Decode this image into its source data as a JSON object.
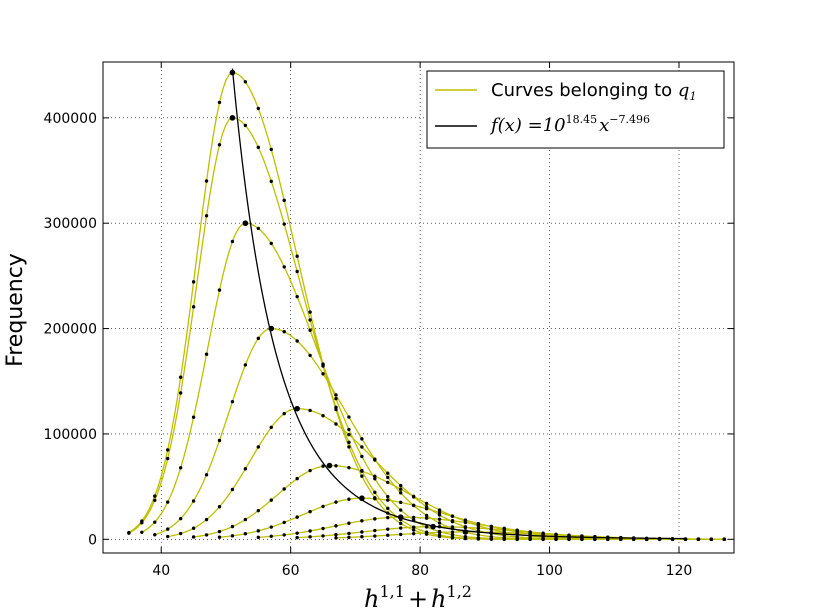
{
  "chart_data": {
    "type": "line",
    "xlabel": {
      "base1": "h",
      "sup1": "1,1",
      "plus": "+",
      "base2": "h",
      "sup2": "1,2"
    },
    "ylabel": "Frequency",
    "xlim": [
      31,
      128.5
    ],
    "ylim": [
      -13000,
      453000
    ],
    "xticks": [
      40,
      60,
      80,
      100,
      120
    ],
    "yticks": [
      0,
      100000,
      200000,
      300000,
      400000
    ],
    "ytick_labels": [
      "0",
      "100000",
      "200000",
      "300000",
      "400000"
    ],
    "grid": true,
    "legend_position": "top-right",
    "legend": [
      {
        "text": "Curves belonging to ",
        "math": "q",
        "math_sub": "1",
        "color": "#bfbf00"
      },
      {
        "text": "",
        "math": "f(x) =10",
        "math_sup": "18.45",
        "math_tail": "x",
        "math_tail_sup": "−7.496",
        "color": "#000000"
      }
    ],
    "colors": {
      "family_curves": "#bfbf00",
      "fit_curve": "#000000",
      "points": "#000000"
    },
    "power_law": {
      "log10_a": 18.45,
      "b": -7.496,
      "x_range": [
        51,
        121
      ]
    },
    "peaks": [
      {
        "x": 51,
        "y": 443000
      },
      {
        "x": 51,
        "y": 400000
      },
      {
        "x": 53,
        "y": 300000
      },
      {
        "x": 57,
        "y": 200000
      },
      {
        "x": 61,
        "y": 124000
      },
      {
        "x": 66,
        "y": 70000
      },
      {
        "x": 71,
        "y": 39000
      },
      {
        "x": 77,
        "y": 21000
      },
      {
        "x": 82,
        "y": 12000
      },
      {
        "x": 87,
        "y": 7000
      }
    ],
    "series": [
      {
        "x_start": 35,
        "x_end": 127,
        "peak_x": 51,
        "peak_y": 443000,
        "width_left": 5.5,
        "width_right": 10
      },
      {
        "x_start": 35,
        "x_end": 127,
        "peak_x": 51,
        "peak_y": 400000,
        "width_left": 5.5,
        "width_right": 10.5
      },
      {
        "x_start": 37,
        "x_end": 127,
        "peak_x": 53,
        "peak_y": 300000,
        "width_left": 5.8,
        "width_right": 11
      },
      {
        "x_start": 39,
        "x_end": 127,
        "peak_x": 57,
        "peak_y": 200000,
        "width_left": 6.5,
        "width_right": 11.5
      },
      {
        "x_start": 41,
        "x_end": 127,
        "peak_x": 61,
        "peak_y": 124000,
        "width_left": 7.2,
        "width_right": 12
      },
      {
        "x_start": 45,
        "x_end": 127,
        "peak_x": 66,
        "peak_y": 70000,
        "width_left": 8,
        "width_right": 12.5
      },
      {
        "x_start": 49,
        "x_end": 127,
        "peak_x": 71,
        "peak_y": 39000,
        "width_left": 9,
        "width_right": 13
      },
      {
        "x_start": 55,
        "x_end": 127,
        "peak_x": 77,
        "peak_y": 21000,
        "width_left": 10,
        "width_right": 13.5
      },
      {
        "x_start": 61,
        "x_end": 127,
        "peak_x": 82,
        "peak_y": 12000,
        "width_left": 10.5,
        "width_right": 14
      },
      {
        "x_start": 67,
        "x_end": 127,
        "peak_x": 87,
        "peak_y": 7000,
        "width_left": 11,
        "width_right": 14
      }
    ]
  }
}
